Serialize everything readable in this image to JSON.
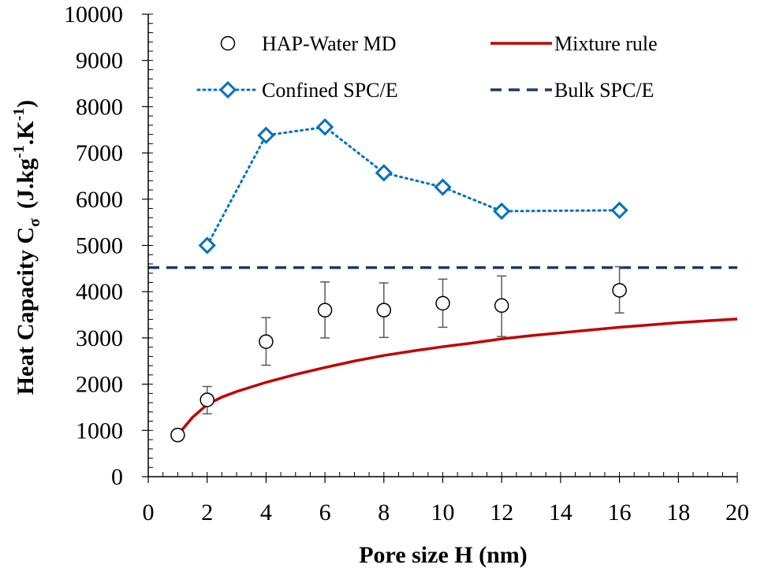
{
  "chart_data": {
    "type": "scatter",
    "xlabel": "Pore size H (nm)",
    "ylabel": {
      "prefix": "Heat Capacity C",
      "sub": "σ",
      "units_open": "(J.kg",
      "exp1": "-1",
      "units_mid": ".K",
      "exp2": "-1",
      "units_close": ")"
    },
    "xlim": [
      0,
      20
    ],
    "ylim": [
      0,
      10000
    ],
    "x_ticks": [
      0,
      2,
      4,
      6,
      8,
      10,
      12,
      14,
      16,
      18,
      20
    ],
    "y_ticks": [
      0,
      1000,
      2000,
      3000,
      4000,
      5000,
      6000,
      7000,
      8000,
      9000,
      10000
    ],
    "x_minor_step": 0.5,
    "y_minor_step": 200,
    "grid": false,
    "legend_position": "top",
    "series": [
      {
        "name": "HAP-Water MD",
        "kind": "scatter",
        "marker": "circle",
        "color": "#000000",
        "x": [
          1,
          2,
          4,
          6,
          8,
          10,
          12,
          16
        ],
        "y": [
          900,
          1660,
          2920,
          3600,
          3600,
          3750,
          3700,
          4030
        ],
        "err_low": [
          830,
          1360,
          2410,
          3000,
          3010,
          3230,
          3030,
          3540
        ],
        "err_high": [
          980,
          1950,
          3440,
          4210,
          4190,
          4270,
          4340,
          4540
        ]
      },
      {
        "name": "Mixture rule",
        "kind": "line",
        "color": "#c00000",
        "x": [
          1,
          1.5,
          2,
          2.5,
          3,
          4,
          5,
          6,
          7,
          8,
          9,
          10,
          11,
          12,
          13,
          14,
          15,
          16,
          17,
          18,
          19,
          20
        ],
        "y": [
          900,
          1280,
          1560,
          1720,
          1840,
          2040,
          2210,
          2360,
          2500,
          2620,
          2720,
          2810,
          2890,
          2980,
          3050,
          3110,
          3170,
          3230,
          3280,
          3330,
          3370,
          3410
        ]
      },
      {
        "name": "Confined SPC/E",
        "kind": "line-marker",
        "marker": "diamond",
        "color": "#0070c0",
        "x": [
          2,
          4,
          6,
          8,
          10,
          12,
          16
        ],
        "y": [
          5000,
          7380,
          7560,
          6570,
          6260,
          5740,
          5760
        ]
      },
      {
        "name": "Bulk SPC/E",
        "kind": "hline",
        "color": "#1f3864",
        "y": 4520
      }
    ]
  }
}
